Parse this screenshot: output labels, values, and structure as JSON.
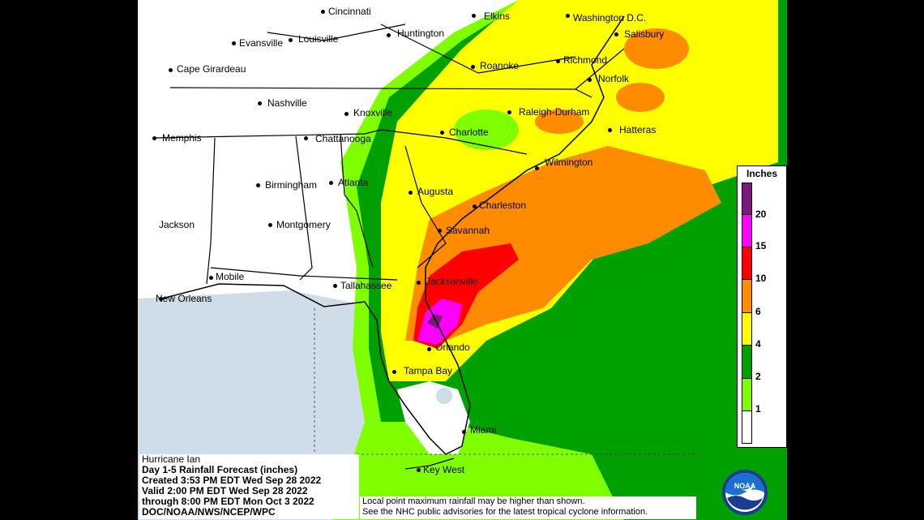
{
  "map": {
    "title": "Hurricane Ian",
    "product": "Day 1-5 Rainfall Forecast (inches)",
    "created": "Created 3:53 PM EDT Wed Sep 28 2022",
    "valid_from": "Valid 2:00 PM EDT Wed Sep 28 2022",
    "valid_to": "through 8:00 PM EDT Mon Oct 3 2022",
    "credit": "DOC/NOAA/NWS/NCEP/WPC",
    "disclaimer_line1": "Local point maximum rainfall may be higher than shown.",
    "disclaimer_line2": "See the NHC public advisories for the latest tropical cyclone information.",
    "logo_text": "NOAA"
  },
  "legend": {
    "title": "Inches",
    "levels": [
      {
        "value": "20",
        "color": "#7a1a7f"
      },
      {
        "value": "15",
        "color": "#ff00ff"
      },
      {
        "value": "10",
        "color": "#ff0000"
      },
      {
        "value": "6",
        "color": "#ff8c00"
      },
      {
        "value": "4",
        "color": "#ffff00"
      },
      {
        "value": "2",
        "color": "#00a000"
      },
      {
        "value": "1",
        "color": "#7fff00"
      },
      {
        "value": "",
        "color": "#ffffff"
      }
    ]
  },
  "cities": [
    {
      "name": "Cincinnati"
    },
    {
      "name": "Elkins"
    },
    {
      "name": "Washington D.C."
    },
    {
      "name": "Salisbury"
    },
    {
      "name": "Huntington"
    },
    {
      "name": "Evansville"
    },
    {
      "name": "Louisville"
    },
    {
      "name": "Roanoke"
    },
    {
      "name": "Richmond"
    },
    {
      "name": "Norfolk"
    },
    {
      "name": "Cape Girardeau"
    },
    {
      "name": "Nashville"
    },
    {
      "name": "Knoxville"
    },
    {
      "name": "Raleigh-Durham"
    },
    {
      "name": "Hatteras"
    },
    {
      "name": "Memphis"
    },
    {
      "name": "Chattanooga"
    },
    {
      "name": "Charlotte"
    },
    {
      "name": "Wilmington"
    },
    {
      "name": "Birmingham"
    },
    {
      "name": "Atlanta"
    },
    {
      "name": "Augusta"
    },
    {
      "name": "Charleston"
    },
    {
      "name": "Jackson"
    },
    {
      "name": "Montgomery"
    },
    {
      "name": "Savannah"
    },
    {
      "name": "Mobile"
    },
    {
      "name": "Tallahassee"
    },
    {
      "name": "Jacksonville"
    },
    {
      "name": "New Orleans"
    },
    {
      "name": "Orlando"
    },
    {
      "name": "Tampa Bay"
    },
    {
      "name": "Miami"
    },
    {
      "name": "Key West"
    }
  ]
}
